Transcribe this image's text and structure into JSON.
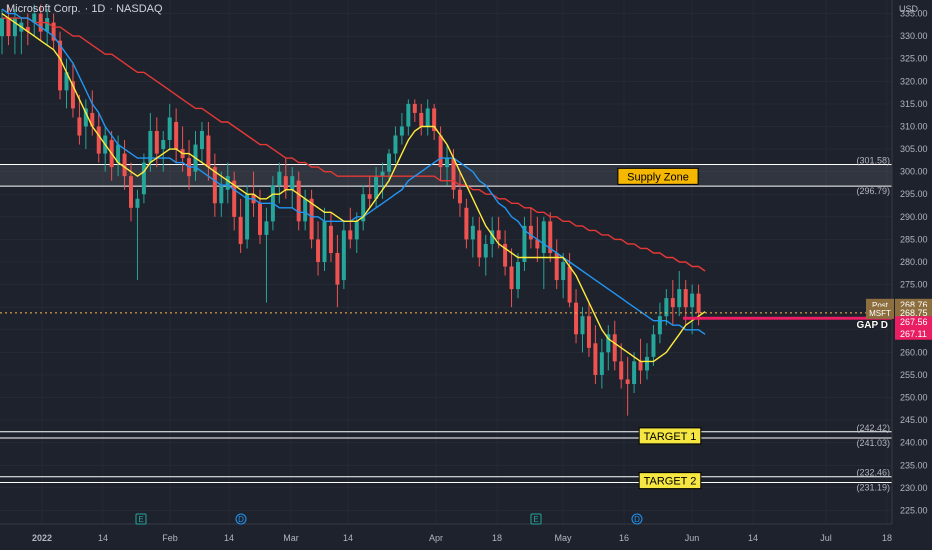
{
  "header": {
    "symbol_name": "Microsoft Corp.",
    "interval": "1D",
    "exchange": "NASDAQ",
    "currency": "USD"
  },
  "colors": {
    "background": "#1e222d",
    "up_candle": "#26a69a",
    "down_candle": "#ef5350",
    "ma_fast": "#ffeb3b",
    "ma_mid": "#2196f3",
    "ma_slow": "#e53935",
    "zone_line": "#ffffff",
    "price_line": "#ffb74d",
    "gap_line": "#e91e63",
    "grid": "#2a2e39",
    "text": "#b2b5be"
  },
  "chart_data": {
    "type": "candlestick",
    "title": "Microsoft Corp. · 1D · NASDAQ",
    "x_tick_labels": [
      "2022",
      "14",
      "Feb",
      "14",
      "Mar",
      "14",
      "Apr",
      "18",
      "May",
      "16",
      "Jun",
      "14",
      "Jul",
      "18"
    ],
    "y_tick_labels": [
      "335.00",
      "330.00",
      "325.00",
      "320.00",
      "315.00",
      "310.00",
      "305.00",
      "300.00",
      "295.00",
      "290.00",
      "285.00",
      "280.00",
      "275.00",
      "270.00",
      "265.00",
      "260.00",
      "255.00",
      "250.00",
      "245.00",
      "240.00",
      "235.00",
      "230.00",
      "225.00"
    ],
    "y_range": [
      222,
      338
    ],
    "grid": true,
    "series_candles": [
      {
        "o": 330,
        "h": 336,
        "l": 326,
        "c": 334
      },
      {
        "o": 334,
        "h": 337,
        "l": 328,
        "c": 330
      },
      {
        "o": 330,
        "h": 336,
        "l": 326,
        "c": 334
      },
      {
        "o": 331,
        "h": 334,
        "l": 326,
        "c": 333
      },
      {
        "o": 332,
        "h": 335,
        "l": 328,
        "c": 331
      },
      {
        "o": 333,
        "h": 337,
        "l": 330,
        "c": 335
      },
      {
        "o": 335,
        "h": 337,
        "l": 329,
        "c": 331
      },
      {
        "o": 331,
        "h": 336,
        "l": 328,
        "c": 334
      },
      {
        "o": 333,
        "h": 335,
        "l": 327,
        "c": 329
      },
      {
        "o": 329,
        "h": 331,
        "l": 316,
        "c": 318
      },
      {
        "o": 318,
        "h": 325,
        "l": 314,
        "c": 322
      },
      {
        "o": 320,
        "h": 324,
        "l": 312,
        "c": 314
      },
      {
        "o": 312,
        "h": 317,
        "l": 306,
        "c": 308
      },
      {
        "o": 310,
        "h": 316,
        "l": 305,
        "c": 314
      },
      {
        "o": 313,
        "h": 318,
        "l": 308,
        "c": 310
      },
      {
        "o": 310,
        "h": 313,
        "l": 302,
        "c": 304
      },
      {
        "o": 304,
        "h": 310,
        "l": 300,
        "c": 308
      },
      {
        "o": 307,
        "h": 309,
        "l": 298,
        "c": 301
      },
      {
        "o": 302,
        "h": 308,
        "l": 299,
        "c": 306
      },
      {
        "o": 304,
        "h": 307,
        "l": 296,
        "c": 299
      },
      {
        "o": 299,
        "h": 302,
        "l": 289,
        "c": 292
      },
      {
        "o": 292,
        "h": 296,
        "l": 276,
        "c": 294
      },
      {
        "o": 295,
        "h": 304,
        "l": 293,
        "c": 302
      },
      {
        "o": 302,
        "h": 313,
        "l": 300,
        "c": 309
      },
      {
        "o": 309,
        "h": 312,
        "l": 301,
        "c": 304
      },
      {
        "o": 305,
        "h": 309,
        "l": 300,
        "c": 307
      },
      {
        "o": 307,
        "h": 315,
        "l": 305,
        "c": 312
      },
      {
        "o": 311,
        "h": 314,
        "l": 302,
        "c": 305
      },
      {
        "o": 305,
        "h": 310,
        "l": 300,
        "c": 303
      },
      {
        "o": 303,
        "h": 307,
        "l": 296,
        "c": 299
      },
      {
        "o": 300,
        "h": 309,
        "l": 298,
        "c": 306
      },
      {
        "o": 305,
        "h": 311,
        "l": 302,
        "c": 309
      },
      {
        "o": 308,
        "h": 311,
        "l": 298,
        "c": 301
      },
      {
        "o": 301,
        "h": 304,
        "l": 290,
        "c": 293
      },
      {
        "o": 293,
        "h": 300,
        "l": 290,
        "c": 297
      },
      {
        "o": 296,
        "h": 302,
        "l": 293,
        "c": 299
      },
      {
        "o": 298,
        "h": 300,
        "l": 287,
        "c": 290
      },
      {
        "o": 290,
        "h": 294,
        "l": 282,
        "c": 284
      },
      {
        "o": 285,
        "h": 297,
        "l": 283,
        "c": 295
      },
      {
        "o": 295,
        "h": 300,
        "l": 290,
        "c": 293
      },
      {
        "o": 293,
        "h": 296,
        "l": 284,
        "c": 286
      },
      {
        "o": 286,
        "h": 292,
        "l": 271,
        "c": 289
      },
      {
        "o": 289,
        "h": 299,
        "l": 287,
        "c": 297
      },
      {
        "o": 297,
        "h": 302,
        "l": 293,
        "c": 300
      },
      {
        "o": 299,
        "h": 303,
        "l": 294,
        "c": 296
      },
      {
        "o": 296,
        "h": 301,
        "l": 292,
        "c": 299
      },
      {
        "o": 298,
        "h": 300,
        "l": 287,
        "c": 289
      },
      {
        "o": 289,
        "h": 296,
        "l": 287,
        "c": 294
      },
      {
        "o": 294,
        "h": 296,
        "l": 283,
        "c": 285
      },
      {
        "o": 285,
        "h": 289,
        "l": 277,
        "c": 280
      },
      {
        "o": 280,
        "h": 292,
        "l": 278,
        "c": 289
      },
      {
        "o": 288,
        "h": 291,
        "l": 280,
        "c": 282
      },
      {
        "o": 282,
        "h": 286,
        "l": 270,
        "c": 275
      },
      {
        "o": 276,
        "h": 289,
        "l": 274,
        "c": 287
      },
      {
        "o": 287,
        "h": 292,
        "l": 283,
        "c": 285
      },
      {
        "o": 285,
        "h": 291,
        "l": 282,
        "c": 289
      },
      {
        "o": 289,
        "h": 297,
        "l": 287,
        "c": 295
      },
      {
        "o": 295,
        "h": 299,
        "l": 292,
        "c": 294
      },
      {
        "o": 294,
        "h": 301,
        "l": 292,
        "c": 299
      },
      {
        "o": 299,
        "h": 302,
        "l": 294,
        "c": 300
      },
      {
        "o": 300,
        "h": 305,
        "l": 298,
        "c": 304
      },
      {
        "o": 304,
        "h": 310,
        "l": 302,
        "c": 308
      },
      {
        "o": 308,
        "h": 313,
        "l": 306,
        "c": 310
      },
      {
        "o": 310,
        "h": 316,
        "l": 308,
        "c": 315
      },
      {
        "o": 315,
        "h": 316,
        "l": 311,
        "c": 313
      },
      {
        "o": 313,
        "h": 315,
        "l": 308,
        "c": 310
      },
      {
        "o": 310,
        "h": 316,
        "l": 308,
        "c": 314
      },
      {
        "o": 314,
        "h": 315,
        "l": 307,
        "c": 309
      },
      {
        "o": 308,
        "h": 310,
        "l": 298,
        "c": 301
      },
      {
        "o": 301,
        "h": 306,
        "l": 297,
        "c": 303
      },
      {
        "o": 303,
        "h": 305,
        "l": 294,
        "c": 296
      },
      {
        "o": 296,
        "h": 300,
        "l": 290,
        "c": 293
      },
      {
        "o": 292,
        "h": 294,
        "l": 283,
        "c": 285
      },
      {
        "o": 285,
        "h": 290,
        "l": 281,
        "c": 288
      },
      {
        "o": 287,
        "h": 290,
        "l": 279,
        "c": 281
      },
      {
        "o": 281,
        "h": 286,
        "l": 277,
        "c": 284
      },
      {
        "o": 284,
        "h": 290,
        "l": 281,
        "c": 287
      },
      {
        "o": 287,
        "h": 290,
        "l": 283,
        "c": 285
      },
      {
        "o": 284,
        "h": 287,
        "l": 277,
        "c": 279
      },
      {
        "o": 279,
        "h": 283,
        "l": 270,
        "c": 274
      },
      {
        "o": 274,
        "h": 282,
        "l": 272,
        "c": 280
      },
      {
        "o": 280,
        "h": 290,
        "l": 278,
        "c": 288
      },
      {
        "o": 288,
        "h": 292,
        "l": 283,
        "c": 285
      },
      {
        "o": 285,
        "h": 290,
        "l": 280,
        "c": 283
      },
      {
        "o": 282,
        "h": 290,
        "l": 274,
        "c": 289
      },
      {
        "o": 289,
        "h": 291,
        "l": 280,
        "c": 282
      },
      {
        "o": 282,
        "h": 285,
        "l": 274,
        "c": 276
      },
      {
        "o": 276,
        "h": 282,
        "l": 272,
        "c": 280
      },
      {
        "o": 279,
        "h": 282,
        "l": 270,
        "c": 271
      },
      {
        "o": 271,
        "h": 274,
        "l": 262,
        "c": 264
      },
      {
        "o": 264,
        "h": 270,
        "l": 260,
        "c": 268
      },
      {
        "o": 268,
        "h": 271,
        "l": 259,
        "c": 261
      },
      {
        "o": 262,
        "h": 266,
        "l": 253,
        "c": 255
      },
      {
        "o": 255,
        "h": 263,
        "l": 252,
        "c": 260
      },
      {
        "o": 260,
        "h": 266,
        "l": 256,
        "c": 264
      },
      {
        "o": 264,
        "h": 267,
        "l": 256,
        "c": 258
      },
      {
        "o": 258,
        "h": 262,
        "l": 252,
        "c": 254
      },
      {
        "o": 254,
        "h": 259,
        "l": 246,
        "c": 253
      },
      {
        "o": 253,
        "h": 260,
        "l": 251,
        "c": 258
      },
      {
        "o": 258,
        "h": 263,
        "l": 253,
        "c": 256
      },
      {
        "o": 256,
        "h": 262,
        "l": 254,
        "c": 259
      },
      {
        "o": 259,
        "h": 266,
        "l": 257,
        "c": 264
      },
      {
        "o": 264,
        "h": 271,
        "l": 262,
        "c": 268
      },
      {
        "o": 268,
        "h": 274,
        "l": 266,
        "c": 272
      },
      {
        "o": 272,
        "h": 276,
        "l": 266,
        "c": 270
      },
      {
        "o": 270,
        "h": 278,
        "l": 268,
        "c": 274
      },
      {
        "o": 274,
        "h": 276,
        "l": 266,
        "c": 270
      },
      {
        "o": 270,
        "h": 275,
        "l": 264,
        "c": 273
      },
      {
        "o": 273,
        "h": 275,
        "l": 266,
        "c": 268.75
      }
    ],
    "ma_fast": [
      335,
      334,
      333,
      332,
      331,
      330,
      329,
      328,
      327,
      325,
      322,
      319,
      316,
      313,
      310,
      308,
      306,
      304,
      302,
      301,
      300,
      299,
      300,
      302,
      303,
      304,
      305,
      305,
      304,
      304,
      303,
      302,
      301,
      300,
      299,
      298,
      297,
      296,
      295,
      295,
      294,
      294,
      295,
      295,
      296,
      296,
      295,
      294,
      293,
      292,
      291,
      291,
      290,
      289,
      289,
      289,
      290,
      292,
      294,
      296,
      298,
      301,
      304,
      307,
      309,
      310,
      310,
      310,
      308,
      306,
      303,
      300,
      297,
      294,
      291,
      288,
      286,
      284,
      283,
      282,
      281,
      281,
      281,
      281,
      281,
      281,
      281,
      281,
      279,
      277,
      274,
      271,
      268,
      265,
      263,
      262,
      261,
      260,
      259,
      258,
      258,
      258,
      259,
      260,
      262,
      264,
      266,
      267,
      268,
      269
    ],
    "ma_mid": [
      336,
      335,
      335,
      334,
      334,
      333,
      332,
      331,
      330,
      328,
      326,
      324,
      321,
      318,
      315,
      313,
      310,
      308,
      306,
      305,
      304,
      303,
      303,
      303,
      303,
      303,
      303,
      302,
      302,
      301,
      301,
      300,
      299,
      298,
      297,
      297,
      296,
      295,
      294,
      294,
      293,
      293,
      293,
      292,
      292,
      292,
      291,
      291,
      290,
      290,
      289,
      289,
      289,
      289,
      289,
      290,
      290,
      291,
      292,
      293,
      294,
      295,
      296,
      298,
      299,
      300,
      301,
      302,
      303,
      303,
      303,
      302,
      301,
      300,
      298,
      297,
      295,
      293,
      292,
      290,
      289,
      287,
      286,
      285,
      284,
      283,
      282,
      281,
      280,
      279,
      278,
      277,
      276,
      275,
      274,
      273,
      272,
      271,
      270,
      269,
      268,
      267,
      267,
      267,
      266,
      266,
      265,
      265,
      265,
      264
    ],
    "ma_slow": [
      334,
      334,
      334,
      334,
      334,
      333,
      333,
      333,
      332,
      332,
      331,
      330,
      330,
      329,
      328,
      327,
      326,
      326,
      325,
      324,
      323,
      322,
      322,
      321,
      320,
      319,
      318,
      317,
      316,
      315,
      314,
      314,
      313,
      312,
      311,
      311,
      310,
      309,
      308,
      307,
      306,
      306,
      305,
      304,
      303,
      303,
      302,
      302,
      301,
      301,
      300,
      300,
      299,
      299,
      299,
      299,
      299,
      299,
      299,
      299,
      299,
      299,
      299,
      299,
      299,
      299,
      299,
      299,
      298,
      298,
      298,
      297,
      297,
      296,
      296,
      295,
      295,
      294,
      294,
      293,
      293,
      292,
      292,
      291,
      291,
      290,
      290,
      289,
      289,
      288,
      288,
      287,
      287,
      286,
      286,
      285,
      285,
      284,
      284,
      283,
      283,
      282,
      282,
      281,
      281,
      280,
      280,
      279,
      279,
      278
    ],
    "supply_zone": {
      "label": "Supply Zone",
      "high": 301.58,
      "low": 296.79
    },
    "targets": [
      {
        "label": "TARGET 1",
        "high": 242.42,
        "low": 241.03
      },
      {
        "label": "TARGET 2",
        "high": 232.46,
        "low": 231.19
      }
    ],
    "gap": {
      "label": "GAP D",
      "price": 267.56
    },
    "price_labels": [
      {
        "tag": "Post",
        "value": "268.76"
      },
      {
        "tag": "MSFT",
        "value": "268.75"
      },
      {
        "tag": "",
        "value": "267.56"
      },
      {
        "tag": "",
        "value": "267.11"
      }
    ],
    "zone_axis_labels": [
      "(301.58)",
      "(296.79)",
      "(242.42)",
      "(241.03)",
      "(232.46)",
      "(231.19)"
    ],
    "event_markers": [
      {
        "glyph": "E"
      },
      {
        "glyph": "D"
      },
      {
        "glyph": "E"
      },
      {
        "glyph": "D"
      }
    ]
  }
}
